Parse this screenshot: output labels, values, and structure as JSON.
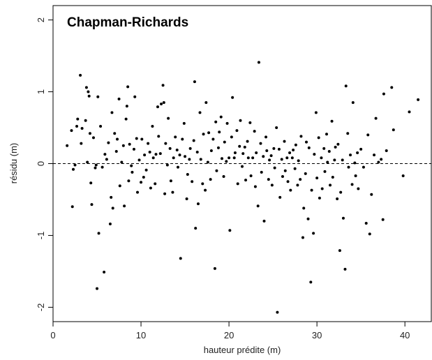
{
  "chart_data": {
    "type": "scatter",
    "title": "Chapman-Richards",
    "xlabel": "hauteur prédite (m)",
    "ylabel": "résidu (m)",
    "xlim": [
      0,
      43
    ],
    "ylim": [
      -2.2,
      2.2
    ],
    "xticks": [
      0,
      10,
      20,
      30,
      40
    ],
    "yticks": [
      -2,
      -1,
      0,
      1,
      2
    ],
    "reference_line": {
      "y": 0,
      "style": "dashed"
    },
    "grid": false,
    "points": [
      [
        1.6,
        0.25
      ],
      [
        2.1,
        0.46
      ],
      [
        2.2,
        -0.6
      ],
      [
        2.3,
        -0.08
      ],
      [
        2.5,
        -0.02
      ],
      [
        2.7,
        0.52
      ],
      [
        2.8,
        0.62
      ],
      [
        3.1,
        1.23
      ],
      [
        3.2,
        0.28
      ],
      [
        3.3,
        0.49
      ],
      [
        3.7,
        0.6
      ],
      [
        3.8,
        1.06
      ],
      [
        3.9,
        0.02
      ],
      [
        4.0,
        1.0
      ],
      [
        4.1,
        0.94
      ],
      [
        4.2,
        0.42
      ],
      [
        4.3,
        -0.27
      ],
      [
        4.4,
        -0.57
      ],
      [
        4.6,
        0.36
      ],
      [
        4.8,
        -0.06
      ],
      [
        4.9,
        -0.02
      ],
      [
        5.0,
        -1.74
      ],
      [
        5.1,
        0.93
      ],
      [
        5.2,
        -0.97
      ],
      [
        5.4,
        0.52
      ],
      [
        5.6,
        -0.05
      ],
      [
        5.8,
        -1.51
      ],
      [
        5.9,
        0.13
      ],
      [
        6.1,
        0.06
      ],
      [
        6.3,
        0.29
      ],
      [
        6.5,
        -0.84
      ],
      [
        6.6,
        -0.47
      ],
      [
        6.7,
        0.71
      ],
      [
        6.8,
        -0.62
      ],
      [
        7.0,
        0.42
      ],
      [
        7.2,
        0.17
      ],
      [
        7.3,
        0.34
      ],
      [
        7.5,
        0.9
      ],
      [
        7.6,
        -0.31
      ],
      [
        7.8,
        0.02
      ],
      [
        8.0,
        0.25
      ],
      [
        8.1,
        -0.59
      ],
      [
        8.3,
        0.62
      ],
      [
        8.4,
        0.8
      ],
      [
        8.5,
        1.07
      ],
      [
        8.6,
        -0.24
      ],
      [
        8.7,
        0.27
      ],
      [
        8.9,
        -0.03
      ],
      [
        9.0,
        -0.12
      ],
      [
        9.2,
        0.2
      ],
      [
        9.3,
        0.93
      ],
      [
        9.5,
        0.35
      ],
      [
        9.6,
        -0.4
      ],
      [
        9.8,
        0.05
      ],
      [
        10.0,
        -0.26
      ],
      [
        10.1,
        0.34
      ],
      [
        10.3,
        -0.19
      ],
      [
        10.4,
        0.12
      ],
      [
        10.6,
        -0.09
      ],
      [
        10.8,
        0.28
      ],
      [
        11.0,
        0.16
      ],
      [
        11.1,
        -0.34
      ],
      [
        11.3,
        0.52
      ],
      [
        11.4,
        0.08
      ],
      [
        11.6,
        -0.28
      ],
      [
        11.7,
        0.13
      ],
      [
        11.9,
        0.79
      ],
      [
        12.0,
        0.38
      ],
      [
        12.2,
        0.14
      ],
      [
        12.3,
        0.83
      ],
      [
        12.5,
        1.09
      ],
      [
        12.6,
        0.85
      ],
      [
        12.7,
        -0.42
      ],
      [
        12.8,
        0.28
      ],
      [
        13.0,
        -0.02
      ],
      [
        13.1,
        0.63
      ],
      [
        13.3,
        0.21
      ],
      [
        13.4,
        -0.24
      ],
      [
        13.6,
        -0.4
      ],
      [
        13.7,
        0.08
      ],
      [
        13.9,
        0.37
      ],
      [
        14.1,
        0.19
      ],
      [
        14.2,
        -0.05
      ],
      [
        14.4,
        0.12
      ],
      [
        14.5,
        -1.32
      ],
      [
        14.7,
        0.34
      ],
      [
        14.9,
        0.56
      ],
      [
        15.0,
        0.1
      ],
      [
        15.2,
        -0.49
      ],
      [
        15.3,
        -0.15
      ],
      [
        15.5,
        0.06
      ],
      [
        15.6,
        0.21
      ],
      [
        15.8,
        -0.25
      ],
      [
        16.0,
        0.32
      ],
      [
        16.1,
        1.14
      ],
      [
        16.2,
        -0.9
      ],
      [
        16.4,
        0.16
      ],
      [
        16.5,
        -0.56
      ],
      [
        16.7,
        0.71
      ],
      [
        16.8,
        0.06
      ],
      [
        17.0,
        -0.28
      ],
      [
        17.1,
        0.41
      ],
      [
        17.3,
        -0.37
      ],
      [
        17.4,
        0.85
      ],
      [
        17.6,
        0.02
      ],
      [
        17.7,
        0.43
      ],
      [
        17.9,
        -0.22
      ],
      [
        18.0,
        0.18
      ],
      [
        18.2,
        0.34
      ],
      [
        18.4,
        -1.46
      ],
      [
        18.5,
        0.58
      ],
      [
        18.6,
        -0.1
      ],
      [
        18.8,
        0.22
      ],
      [
        18.9,
        0.44
      ],
      [
        19.1,
        0.65
      ],
      [
        19.2,
        0.07
      ],
      [
        19.4,
        -0.18
      ],
      [
        19.5,
        0.3
      ],
      [
        19.7,
        0.03
      ],
      [
        19.8,
        0.56
      ],
      [
        20.0,
        0.08
      ],
      [
        20.1,
        -0.93
      ],
      [
        20.3,
        0.37
      ],
      [
        20.4,
        0.92
      ],
      [
        20.6,
        0.08
      ],
      [
        20.7,
        0.15
      ],
      [
        20.9,
        0.46
      ],
      [
        21.0,
        -0.28
      ],
      [
        21.2,
        0.24
      ],
      [
        21.3,
        0.6
      ],
      [
        21.5,
        -0.04
      ],
      [
        21.6,
        0.14
      ],
      [
        21.8,
        0.23
      ],
      [
        21.9,
        -0.23
      ],
      [
        22.1,
        0.31
      ],
      [
        22.2,
        0.08
      ],
      [
        22.4,
        0.57
      ],
      [
        22.5,
        -0.17
      ],
      [
        22.7,
        0.08
      ],
      [
        22.9,
        0.45
      ],
      [
        23.0,
        -0.32
      ],
      [
        23.1,
        0.15
      ],
      [
        23.3,
        -0.59
      ],
      [
        23.4,
        1.41
      ],
      [
        23.6,
        0.28
      ],
      [
        23.7,
        -0.12
      ],
      [
        23.9,
        0.1
      ],
      [
        24.0,
        -0.8
      ],
      [
        24.2,
        0.37
      ],
      [
        24.3,
        0.18
      ],
      [
        24.5,
        -0.22
      ],
      [
        24.6,
        0.05
      ],
      [
        24.8,
        0.11
      ],
      [
        24.9,
        -0.3
      ],
      [
        25.1,
        0.21
      ],
      [
        25.2,
        -0.06
      ],
      [
        25.4,
        0.5
      ],
      [
        25.5,
        -2.07
      ],
      [
        25.7,
        0.2
      ],
      [
        25.8,
        -0.47
      ],
      [
        26.0,
        0.06
      ],
      [
        26.1,
        -0.18
      ],
      [
        26.3,
        0.31
      ],
      [
        26.4,
        -0.1
      ],
      [
        26.6,
        0.08
      ],
      [
        26.7,
        -0.25
      ],
      [
        26.9,
        0.15
      ],
      [
        27.0,
        -0.37
      ],
      [
        27.2,
        0.08
      ],
      [
        27.3,
        0.19
      ],
      [
        27.5,
        -0.07
      ],
      [
        27.6,
        0.26
      ],
      [
        27.8,
        -0.3
      ],
      [
        27.9,
        0.04
      ],
      [
        28.1,
        -0.22
      ],
      [
        28.2,
        0.38
      ],
      [
        28.4,
        -1.03
      ],
      [
        28.5,
        -0.62
      ],
      [
        28.7,
        -0.14
      ],
      [
        28.8,
        0.3
      ],
      [
        29.0,
        -0.77
      ],
      [
        29.1,
        0.22
      ],
      [
        29.3,
        -1.65
      ],
      [
        29.4,
        -0.37
      ],
      [
        29.6,
        -0.97
      ],
      [
        29.7,
        0.13
      ],
      [
        29.9,
        0.71
      ],
      [
        30.0,
        -0.2
      ],
      [
        30.2,
        0.36
      ],
      [
        30.3,
        -0.48
      ],
      [
        30.5,
        0.08
      ],
      [
        30.6,
        -0.35
      ],
      [
        30.8,
        0.21
      ],
      [
        30.9,
        -0.11
      ],
      [
        31.1,
        0.41
      ],
      [
        31.2,
        0.02
      ],
      [
        31.4,
        0.17
      ],
      [
        31.5,
        -0.3
      ],
      [
        31.7,
        0.59
      ],
      [
        31.8,
        -0.19
      ],
      [
        32.0,
        0.05
      ],
      [
        32.1,
        0.23
      ],
      [
        32.3,
        -0.49
      ],
      [
        32.4,
        0.27
      ],
      [
        32.6,
        -1.21
      ],
      [
        32.7,
        -0.4
      ],
      [
        32.9,
        0.05
      ],
      [
        33.0,
        -0.76
      ],
      [
        33.2,
        -1.47
      ],
      [
        33.3,
        1.08
      ],
      [
        33.5,
        0.42
      ],
      [
        33.6,
        -0.05
      ],
      [
        33.8,
        0.12
      ],
      [
        34.0,
        -0.29
      ],
      [
        34.1,
        0.85
      ],
      [
        34.3,
        0.01
      ],
      [
        34.4,
        -0.17
      ],
      [
        34.6,
        0.15
      ],
      [
        34.7,
        -0.35
      ],
      [
        35.0,
        0.2
      ],
      [
        35.3,
        -0.05
      ],
      [
        35.6,
        -0.83
      ],
      [
        35.8,
        0.4
      ],
      [
        36.0,
        -0.98
      ],
      [
        36.2,
        -0.43
      ],
      [
        36.5,
        0.12
      ],
      [
        36.7,
        0.63
      ],
      [
        37.0,
        0.02
      ],
      [
        37.3,
        0.06
      ],
      [
        37.5,
        -0.78
      ],
      [
        37.6,
        0.97
      ],
      [
        37.9,
        0.18
      ],
      [
        38.5,
        1.06
      ],
      [
        38.7,
        0.47
      ],
      [
        39.8,
        -0.17
      ],
      [
        40.5,
        0.72
      ],
      [
        41.5,
        0.89
      ]
    ]
  }
}
